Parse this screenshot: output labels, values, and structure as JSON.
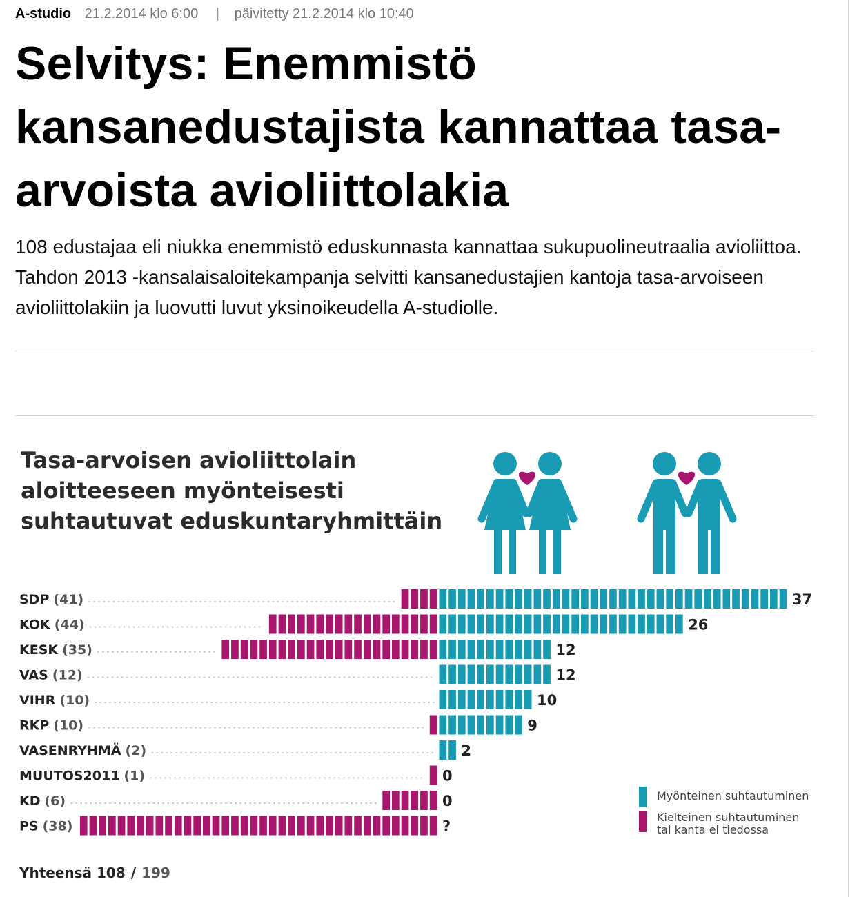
{
  "article": {
    "section": "A-studio",
    "published": "21.2.2014 klo 6:00",
    "separator": "|",
    "updated": "päivitetty 21.2.2014 klo 10:40",
    "headline": "Selvitys: Enemmistö kansanedustajista kannattaa tasa-arvoista avioliittolakia",
    "lead": "108 edustajaa eli niukka enemmistö eduskunnasta kannattaa sukupuolineutraalia avioliittoa. Tahdon 2013 -kansalaisaloitekampanja selvitti kansanedustajien kantoja tasa-arvoiseen avioliittolakiin ja luovutti luvut yksinoikeudella A-studiolle."
  },
  "colors": {
    "positive": "#1a9bb4",
    "negative": "#a8166e",
    "heart": "#a8166e"
  },
  "icons": [
    "female-couple-icon",
    "male-couple-icon",
    "heart-icon"
  ],
  "chart_data": {
    "type": "bar",
    "title_lines": [
      "Tasa-arvoisen avioliittolain",
      "aloitteeseen myönteisesti",
      "suhtautuvat eduskuntaryhmittäin"
    ],
    "categories": [
      "SDP",
      "KOK",
      "KESK",
      "VAS",
      "VIHR",
      "RKP",
      "VASENRYHMÄ",
      "MUUTOS2011",
      "KD",
      "PS"
    ],
    "group_sizes": [
      "(41)",
      "(44)",
      "(35)",
      "(12)",
      "(10)",
      "(10)",
      "(2)",
      "(1)",
      "(6)",
      "(38)"
    ],
    "series": [
      {
        "name": "Myönteinen suhtautuminen",
        "values": [
          37,
          26,
          12,
          12,
          10,
          9,
          2,
          0,
          0,
          0
        ]
      },
      {
        "name": "Kielteinen suhtautuminen tai kanta ei tiedossa",
        "values": [
          4,
          18,
          23,
          0,
          0,
          1,
          0,
          1,
          6,
          38
        ]
      }
    ],
    "value_labels": [
      "37",
      "26",
      "12",
      "12",
      "10",
      "9",
      "2",
      "0",
      "0",
      "?"
    ],
    "legend": {
      "position": "bottom-right",
      "positive_label": "Myönteinen suhtautuminen",
      "negative_label_lines": [
        "Kielteinen suhtautuminen",
        "tai kanta ei tiedossa"
      ]
    },
    "total": {
      "label": "Yhteensä 108",
      "slash": "/",
      "of": "199"
    }
  }
}
